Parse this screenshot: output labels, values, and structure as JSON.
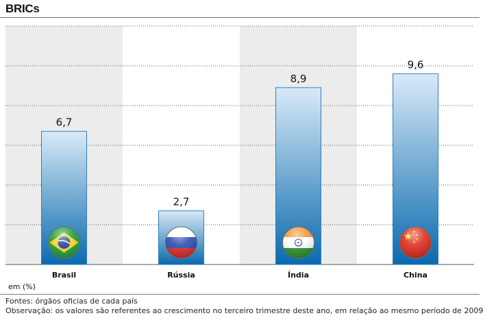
{
  "title": "BRICs",
  "unit_label": "em (%)",
  "notes": {
    "sources": "Fontes: órgãos oficias de cada país",
    "observation": "Observação: os valores são referentes ao crescimento no terceiro trimestre deste ano, em relação ao mesmo período de 2009"
  },
  "colors": {
    "band": "#ececec",
    "bar_top": "#d9eaf7",
    "bar_bottom": "#0a6aae",
    "bar_border": "#2d7fbd",
    "gridline": "#5a5a5a"
  },
  "chart_data": {
    "type": "bar",
    "title": "BRICs",
    "categories": [
      "Brasil",
      "Rússia",
      "Índia",
      "China"
    ],
    "values": [
      6.7,
      2.7,
      8.9,
      9.6
    ],
    "value_labels": [
      "6,7",
      "2,7",
      "8,9",
      "9,6"
    ],
    "flags": [
      "brazil-flag-icon",
      "russia-flag-icon",
      "india-flag-icon",
      "china-flag-icon"
    ],
    "xlabel": "",
    "ylabel": "em (%)",
    "ylim": [
      0,
      12
    ],
    "grid": true,
    "legend": "none"
  }
}
